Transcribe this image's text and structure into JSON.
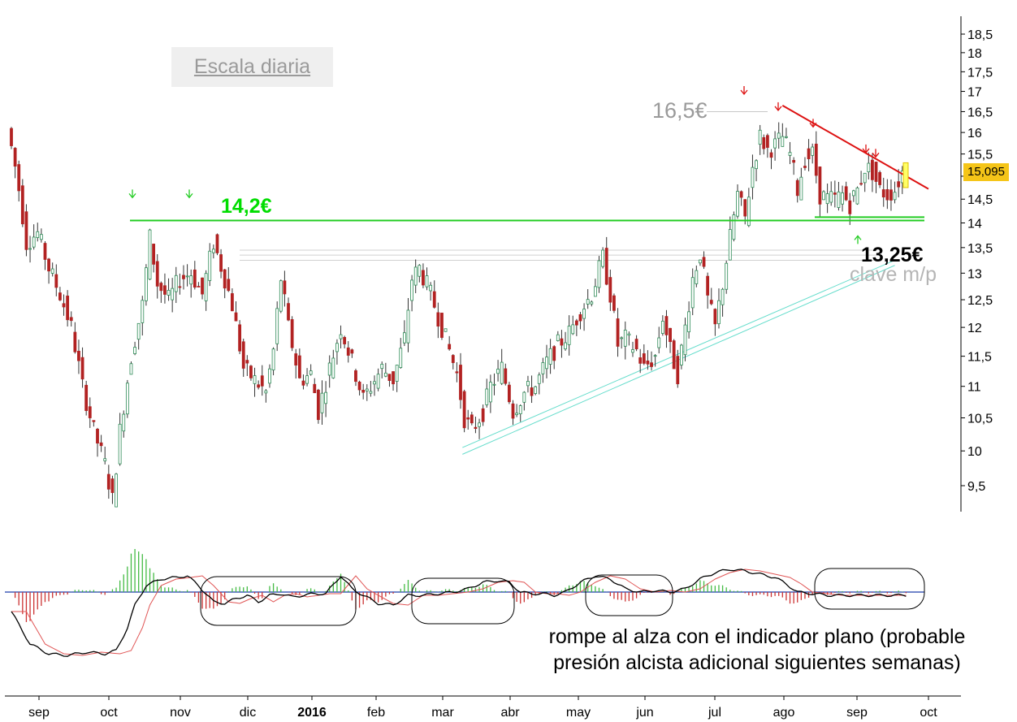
{
  "labels": {
    "scale": "Escala diaria",
    "support": "14,2€",
    "resistance_peak": "16,5€",
    "key_level": "13,25€",
    "key_level_note": "clave m/p",
    "note_line1": "rompe al alza con el indicador plano (probable",
    "note_line2": "presión alcista adicional siguientes semanas)",
    "last_price": "15,095"
  },
  "colors": {
    "support_line": "#22cc22",
    "resistance_line": "#dd1111",
    "trend_channel": "#66ddcc",
    "candle_up": "#2e8b57",
    "candle_down": "#b22222",
    "hist_pos": "#44bb44",
    "hist_neg": "#cc3333",
    "macd_line": "#000000",
    "signal_line": "#e05555",
    "price_box": "#f5c518"
  },
  "chart_data": {
    "type": "candlestick",
    "y_scale": "log",
    "ylim": [
      9.1,
      18.8
    ],
    "y_ticks": [
      "18,5",
      "18",
      "17,5",
      "17",
      "16,5",
      "16",
      "15,5",
      "15",
      "14,5",
      "14",
      "13,5",
      "13",
      "12,5",
      "12",
      "11,5",
      "11",
      "10,5",
      "10",
      "9,5"
    ],
    "y_tick_values": [
      18.5,
      18,
      17.5,
      17,
      16.5,
      16,
      15.5,
      15,
      14.5,
      14,
      13.5,
      13,
      12.5,
      12,
      11.5,
      11,
      10.5,
      10,
      9.5
    ],
    "x_labels": [
      "sep",
      "oct",
      "nov",
      "dic",
      "2016",
      "feb",
      "mar",
      "abr",
      "may",
      "jun",
      "jul",
      "ago",
      "sep",
      "oct"
    ],
    "bold_x_label": "2016",
    "price_path": [
      [
        0,
        16.1
      ],
      [
        5,
        15.0
      ],
      [
        10,
        13.6
      ],
      [
        16,
        13.8
      ],
      [
        22,
        13.1
      ],
      [
        28,
        12.6
      ],
      [
        34,
        12.0
      ],
      [
        40,
        11.0
      ],
      [
        46,
        10.3
      ],
      [
        52,
        9.8
      ],
      [
        56,
        9.3
      ],
      [
        60,
        10.3
      ],
      [
        66,
        11.5
      ],
      [
        72,
        12.4
      ],
      [
        76,
        13.7
      ],
      [
        80,
        12.8
      ],
      [
        86,
        12.5
      ],
      [
        92,
        12.9
      ],
      [
        98,
        13.0
      ],
      [
        104,
        12.6
      ],
      [
        110,
        13.6
      ],
      [
        116,
        12.9
      ],
      [
        120,
        12.4
      ],
      [
        126,
        11.3
      ],
      [
        132,
        11.1
      ],
      [
        138,
        10.9
      ],
      [
        142,
        11.6
      ],
      [
        146,
        12.9
      ],
      [
        150,
        12.0
      ],
      [
        156,
        11.1
      ],
      [
        162,
        11.2
      ],
      [
        166,
        10.6
      ],
      [
        172,
        11.3
      ],
      [
        178,
        12.0
      ],
      [
        184,
        11.4
      ],
      [
        190,
        10.8
      ],
      [
        194,
        11.0
      ],
      [
        200,
        11.3
      ],
      [
        206,
        11.1
      ],
      [
        212,
        11.8
      ],
      [
        216,
        12.9
      ],
      [
        220,
        13.1
      ],
      [
        226,
        12.6
      ],
      [
        232,
        12.0
      ],
      [
        236,
        11.6
      ],
      [
        240,
        11.2
      ],
      [
        244,
        10.5
      ],
      [
        248,
        10.3
      ],
      [
        254,
        10.6
      ],
      [
        258,
        11.0
      ],
      [
        264,
        11.3
      ],
      [
        270,
        10.6
      ],
      [
        276,
        10.9
      ],
      [
        282,
        11.0
      ],
      [
        288,
        11.4
      ],
      [
        294,
        11.7
      ],
      [
        300,
        11.9
      ],
      [
        306,
        12.3
      ],
      [
        312,
        12.6
      ],
      [
        318,
        13.3
      ],
      [
        322,
        12.6
      ],
      [
        326,
        11.7
      ],
      [
        330,
        11.8
      ],
      [
        336,
        11.6
      ],
      [
        340,
        11.3
      ],
      [
        346,
        11.5
      ],
      [
        350,
        12.2
      ],
      [
        354,
        11.6
      ],
      [
        358,
        11.2
      ],
      [
        362,
        12.0
      ],
      [
        366,
        12.9
      ],
      [
        370,
        13.4
      ],
      [
        374,
        12.5
      ],
      [
        378,
        12.0
      ],
      [
        382,
        12.8
      ],
      [
        386,
        13.7
      ],
      [
        390,
        14.6
      ],
      [
        394,
        14.1
      ],
      [
        398,
        15.2
      ],
      [
        402,
        15.9
      ],
      [
        406,
        15.6
      ],
      [
        410,
        15.7
      ],
      [
        414,
        15.9
      ],
      [
        418,
        15.5
      ],
      [
        422,
        14.7
      ],
      [
        426,
        15.4
      ],
      [
        430,
        15.5
      ],
      [
        434,
        14.6
      ],
      [
        438,
        14.5
      ],
      [
        442,
        14.5
      ],
      [
        446,
        14.6
      ],
      [
        450,
        14.4
      ],
      [
        454,
        14.7
      ],
      [
        458,
        15.2
      ],
      [
        462,
        15.1
      ],
      [
        466,
        14.7
      ],
      [
        470,
        14.6
      ],
      [
        474,
        14.7
      ],
      [
        478,
        15.1
      ]
    ],
    "overlays": [
      {
        "name": "support",
        "value": 14.05
      },
      {
        "name": "support_recent",
        "value": 14.12
      },
      {
        "name": "resistance_trend",
        "from": [
          412,
          16.65
        ],
        "to": [
          478,
          14.72
        ]
      },
      {
        "name": "channel_a",
        "from": [
          241,
          10.05
        ],
        "to": [
          472,
          13.25
        ]
      },
      {
        "name": "channel_b",
        "from": [
          241,
          9.95
        ],
        "to": [
          472,
          13.15
        ]
      },
      {
        "name": "grey_ref_1",
        "value": 13.45
      },
      {
        "name": "grey_ref_2",
        "value": 13.35
      },
      {
        "name": "grey_ref_3",
        "value": 13.25
      }
    ],
    "indicator": {
      "name": "MACD",
      "macd": [
        [
          0,
          -0.6
        ],
        [
          10,
          -1.6
        ],
        [
          20,
          -1.9
        ],
        [
          30,
          -1.95
        ],
        [
          40,
          -1.85
        ],
        [
          50,
          -1.9
        ],
        [
          56,
          -1.8
        ],
        [
          62,
          -1.1
        ],
        [
          66,
          -0.4
        ],
        [
          72,
          0.2
        ],
        [
          80,
          0.4
        ],
        [
          88,
          0.45
        ],
        [
          94,
          0.5
        ],
        [
          100,
          0.2
        ],
        [
          108,
          -0.3
        ],
        [
          114,
          -0.35
        ],
        [
          120,
          -0.2
        ],
        [
          126,
          -0.1
        ],
        [
          132,
          -0.3
        ],
        [
          138,
          -0.1
        ],
        [
          144,
          -0.05
        ],
        [
          150,
          -0.15
        ],
        [
          156,
          -0.1
        ],
        [
          162,
          -0.05
        ],
        [
          168,
          -0.05
        ],
        [
          176,
          0.5
        ],
        [
          182,
          0.1
        ],
        [
          188,
          -0.1
        ],
        [
          196,
          -0.35
        ],
        [
          204,
          -0.4
        ],
        [
          212,
          -0.1
        ],
        [
          220,
          -0.1
        ],
        [
          228,
          -0.05
        ],
        [
          236,
          0.0
        ],
        [
          244,
          0.1
        ],
        [
          252,
          0.3
        ],
        [
          260,
          0.35
        ],
        [
          266,
          0.3
        ],
        [
          272,
          0.0
        ],
        [
          278,
          -0.05
        ],
        [
          284,
          -0.05
        ],
        [
          290,
          -0.1
        ],
        [
          296,
          0.0
        ],
        [
          304,
          0.3
        ],
        [
          312,
          0.5
        ],
        [
          320,
          0.4
        ],
        [
          328,
          0.1
        ],
        [
          336,
          0.0
        ],
        [
          344,
          0.05
        ],
        [
          352,
          0.0
        ],
        [
          360,
          0.1
        ],
        [
          368,
          0.4
        ],
        [
          376,
          0.6
        ],
        [
          384,
          0.7
        ],
        [
          392,
          0.65
        ],
        [
          400,
          0.55
        ],
        [
          408,
          0.45
        ],
        [
          414,
          0.25
        ],
        [
          420,
          0.0
        ],
        [
          428,
          -0.05
        ],
        [
          436,
          -0.1
        ],
        [
          444,
          -0.1
        ],
        [
          452,
          -0.1
        ],
        [
          460,
          -0.1
        ],
        [
          468,
          -0.1
        ],
        [
          478,
          -0.1
        ]
      ],
      "histogram_note": "green/red bars around zero line"
    }
  }
}
